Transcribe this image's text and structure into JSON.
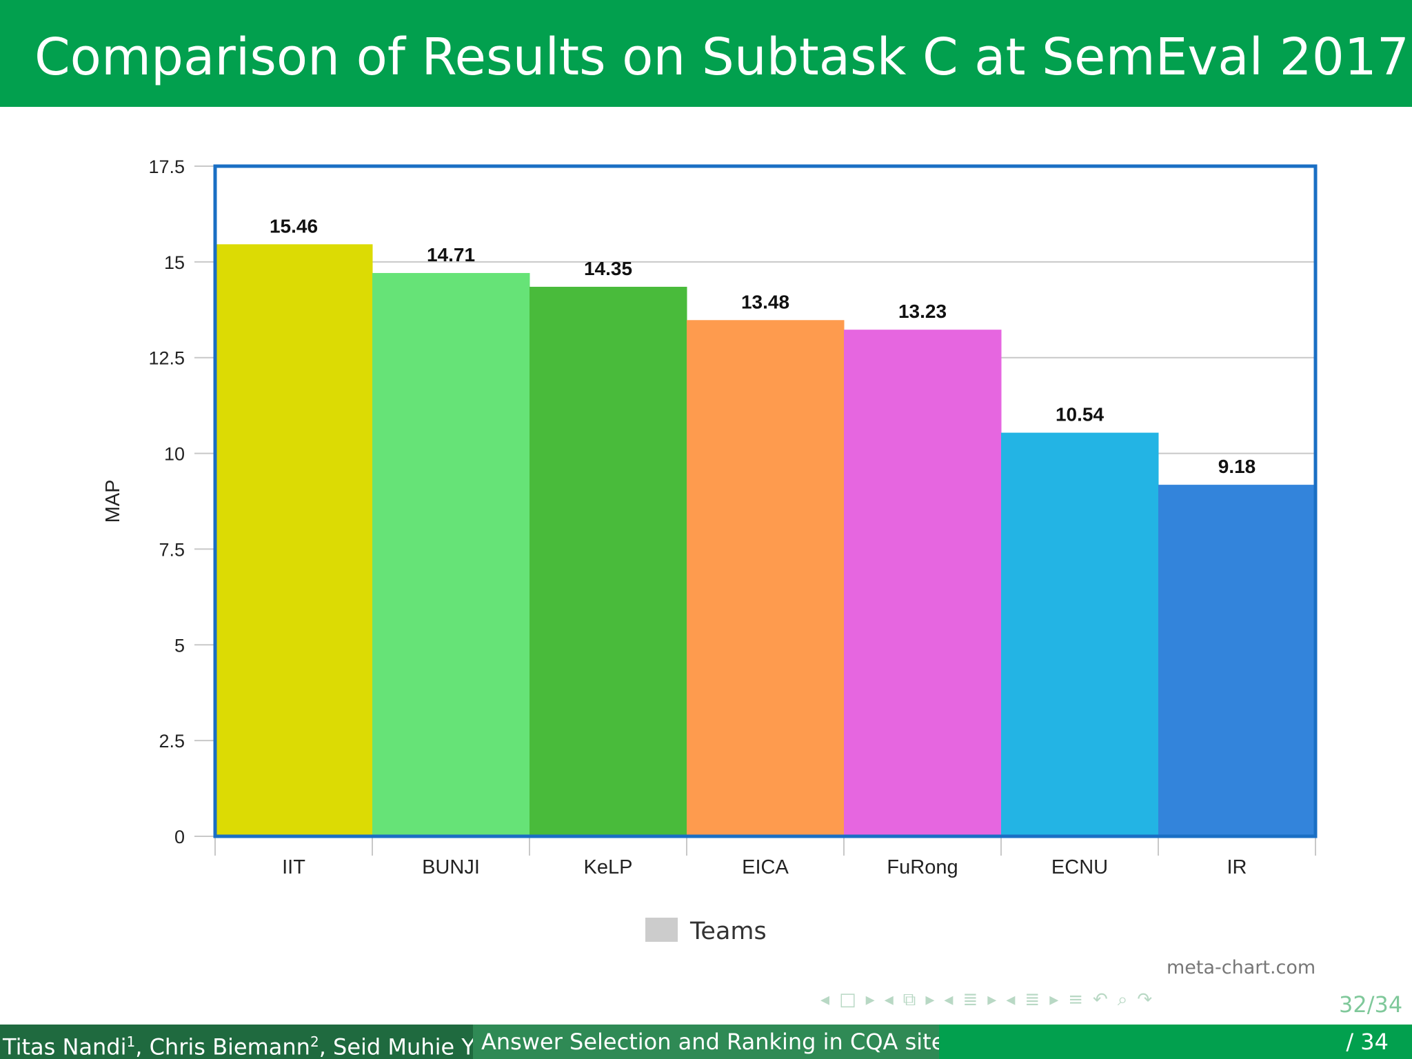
{
  "slide": {
    "title": "Comparison of Results on Subtask C at SemEval 2017"
  },
  "chart_data": {
    "type": "bar",
    "categories": [
      "IIT",
      "BUNJI",
      "KeLP",
      "EICA",
      "FuRong",
      "ECNU",
      "IR"
    ],
    "values": [
      15.46,
      14.71,
      14.35,
      13.48,
      13.23,
      10.54,
      9.18
    ],
    "value_labels": [
      "15.46",
      "14.71",
      "14.35",
      "13.48",
      "13.23",
      "10.54",
      "9.18"
    ],
    "colors": [
      "#dcdb04",
      "#66e377",
      "#49bb3b",
      "#fe9b4e",
      "#e666e0",
      "#23b4e4",
      "#3384db"
    ],
    "ylabel": "MAP",
    "xlabel": "",
    "ylim": [
      0,
      17.5
    ],
    "yticks": [
      "0",
      "2.5",
      "5",
      "7.5",
      "10",
      "12.5",
      "15",
      "17.5"
    ],
    "grid": true,
    "legend": {
      "label": "Teams",
      "position": "bottom",
      "color": "#cccccc"
    },
    "frame_color": "#1a6fc4"
  },
  "watermark": "meta-chart.com",
  "navigation": {
    "page": "32/34",
    "icons": [
      "nav-left-arrow-icon",
      "nav-frame-icon",
      "nav-right-arrow-icon",
      "nav-left-arrow-icon",
      "nav-subsection-icon",
      "nav-right-arrow-icon",
      "nav-left-arrow-icon",
      "nav-section-icon",
      "nav-right-arrow-icon",
      "nav-left-arrow-icon",
      "nav-doc-icon",
      "nav-right-arrow-icon",
      "nav-align-icon",
      "nav-undo-icon",
      "nav-search-icon",
      "nav-redo-icon"
    ]
  },
  "footer": {
    "authors_a": "Titas Nandi",
    "authors_a_sup": "1",
    "authors_b": ", Chris Biemann",
    "authors_b_sup": "2",
    "authors_c": ", Seid Muhie Yi",
    "talk_title": "Answer Selection and Ranking in CQA sites",
    "page": "/ 34"
  },
  "colors": {
    "title_bar": "#02a04e",
    "footer_dark": "#1f6a3f",
    "footer_mid": "#2f8a55"
  }
}
